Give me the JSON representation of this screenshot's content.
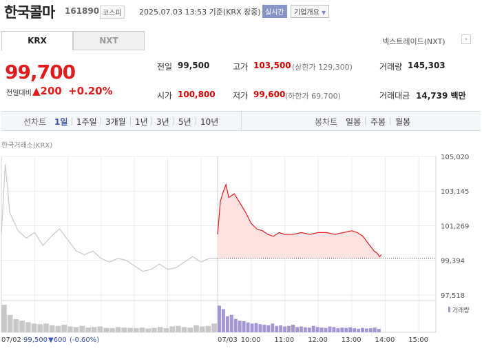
{
  "header": {
    "name": "한국콜마",
    "code": "161890",
    "market": "코스피",
    "datetime": "2025.07.03 13:53 기준(KRX 장중)",
    "realtime": "실시간",
    "company_info": "기업개요"
  },
  "tabs": {
    "krx": "KRX",
    "nxt": "NXT"
  },
  "nxt_link": "넥스트레이드(NXT)",
  "price": {
    "current": "99,700",
    "vs_label": "전일대비",
    "change": "▲200",
    "pct": "+0.20%"
  },
  "stats": {
    "prev_label": "전일",
    "prev": "99,500",
    "high_label": "고가",
    "high": "103,500",
    "upper_limit": "(상한가 129,300)",
    "volume_label": "거래량",
    "volume": "145,303",
    "open_label": "시가",
    "open": "100,800",
    "low_label": "저가",
    "low": "99,600",
    "lower_limit": "(하한가 69,700)",
    "amount_label": "거래대금",
    "amount": "14,739 백만"
  },
  "period": {
    "line_label": "선차트",
    "line_items": [
      "1일",
      "1주일",
      "3개월",
      "1년",
      "3년",
      "5년",
      "10년"
    ],
    "line_selected": "1일",
    "candle_label": "봉차트",
    "candle_items": [
      "일봉",
      "주봉",
      "월봉"
    ]
  },
  "chart_title": "한국거래소(KRX)",
  "colors": {
    "up": "#e01b1b",
    "down": "#3a52b8",
    "prev_day_line": "#c8c8c8",
    "prev_day_volume": "#c8c8c8",
    "today_volume": "#a497d4",
    "area_fill": "#fde2e2"
  },
  "chart_data": {
    "type": "line",
    "title": "한국거래소(KRX)",
    "xlabel": "",
    "ylabel": "",
    "ylim": [
      97518,
      105020
    ],
    "y_ticks": [
      "105,020",
      "103,145",
      "101,269",
      "99,394",
      "97,518"
    ],
    "x_ticks": [
      "07/02",
      "07/03",
      "10:00",
      "11:00",
      "12:00",
      "13:00",
      "14:00",
      "15:00"
    ],
    "reference_price": 99500,
    "volume_legend": "거래량",
    "prev_day_summary": {
      "date": "07/02",
      "close": "99,500",
      "change": "▼600",
      "pct": "(-0.60%)"
    },
    "series": [
      {
        "x": [
          "07/02 09:00",
          "09:07",
          "09:15",
          "09:30",
          "09:45",
          "10:00",
          "10:15",
          "10:30",
          "10:45",
          "11:00",
          "11:15",
          "11:30",
          "11:45",
          "12:00",
          "12:15",
          "12:30",
          "12:45",
          "13:00",
          "13:15",
          "13:30",
          "13:45",
          "14:00",
          "14:15",
          "14:30",
          "14:45",
          "15:00",
          "15:15",
          "15:30"
        ],
        "values": [
          100800,
          104600,
          102000,
          101000,
          100600,
          100900,
          100200,
          100700,
          101100,
          100500,
          99900,
          99700,
          99900,
          99500,
          99300,
          99500,
          99400,
          99100,
          98800,
          98900,
          99200,
          98900,
          99000,
          99300,
          99600,
          99300,
          99500,
          99500
        ]
      },
      {
        "x": [
          "07/03 09:00",
          "09:05",
          "09:10",
          "09:15",
          "09:20",
          "09:30",
          "09:40",
          "09:50",
          "10:00",
          "10:10",
          "10:20",
          "10:30",
          "10:40",
          "10:50",
          "11:00",
          "11:15",
          "11:30",
          "11:45",
          "12:00",
          "12:15",
          "12:30",
          "12:45",
          "13:00",
          "13:10",
          "13:20",
          "13:30",
          "13:40",
          "13:45",
          "13:50",
          "13:53"
        ],
        "values": [
          100800,
          102600,
          103100,
          103500,
          102800,
          103000,
          102500,
          102000,
          101400,
          101100,
          101000,
          100800,
          100700,
          100900,
          100800,
          100800,
          100900,
          100800,
          100900,
          100900,
          100800,
          100900,
          101000,
          100900,
          100700,
          100300,
          99900,
          99800,
          99600,
          99700
        ]
      }
    ],
    "volume": {
      "prev_day_bars": [
        95,
        60,
        45,
        40,
        35,
        30,
        28,
        30,
        24,
        22,
        26,
        20,
        18,
        22,
        16,
        18,
        20,
        15,
        14,
        18,
        16,
        15,
        14,
        16,
        13,
        15,
        18,
        14,
        20,
        22,
        18,
        16,
        24,
        20,
        22,
        30
      ],
      "today_bars": [
        92,
        80,
        55,
        60,
        46,
        40,
        38,
        34,
        30,
        32,
        28,
        26,
        24,
        30,
        22,
        24,
        20,
        22,
        26,
        18,
        20,
        17,
        16,
        22,
        18,
        16,
        15,
        20,
        18,
        14,
        16,
        15,
        17,
        14,
        12,
        15,
        13,
        14,
        16,
        12
      ]
    }
  }
}
